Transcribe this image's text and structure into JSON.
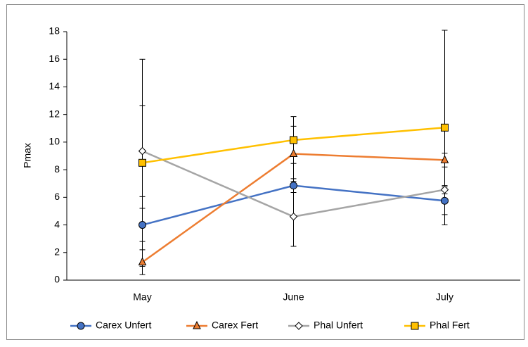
{
  "chart_data": {
    "type": "line",
    "y_label": "Pmax",
    "categories": [
      "May",
      "June",
      "July"
    ],
    "series": [
      {
        "name": "Carex Unfert",
        "color": "#4472c4",
        "marker": "circle",
        "values": [
          4.0,
          6.85,
          5.75
        ],
        "errors": [
          1.2,
          0.5,
          1.0
        ]
      },
      {
        "name": "Carex Fert",
        "color": "#ed7d31",
        "marker": "triangle",
        "values": [
          1.3,
          9.15,
          8.7
        ],
        "errors": [
          0.9,
          2.0,
          0.5
        ]
      },
      {
        "name": "Phal Unfert",
        "color": "#a5a5a5",
        "marker": "diamond",
        "values": [
          9.35,
          4.6,
          6.55
        ],
        "errors": [
          3.3,
          2.15,
          0.3
        ]
      },
      {
        "name": "Phal Fert",
        "color": "#ffc000",
        "marker": "square",
        "values": [
          8.5,
          10.15,
          11.05
        ],
        "errors": [
          7.5,
          1.7,
          7.05
        ]
      }
    ],
    "ylim": [
      0,
      18
    ],
    "yticks": [
      0,
      2,
      4,
      6,
      8,
      10,
      12,
      14,
      16,
      18
    ],
    "legend": "bottom"
  }
}
